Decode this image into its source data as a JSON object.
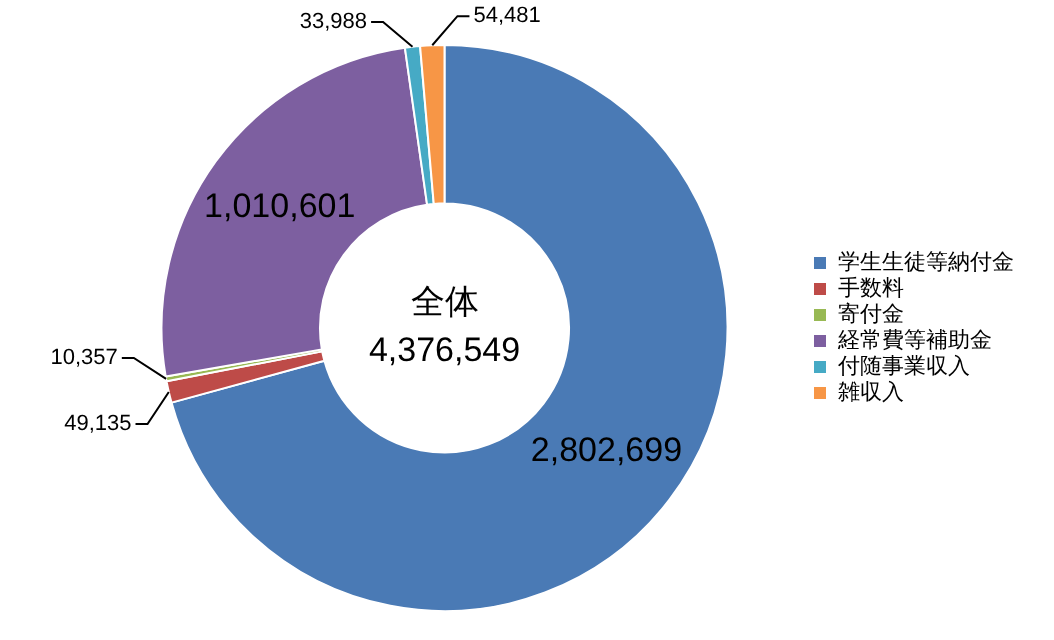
{
  "chart_data": {
    "type": "donut",
    "categories": [
      "学生生徒等納付金",
      "手数料",
      "寄付金",
      "経常費等補助金",
      "付随事業収入",
      "雑収入"
    ],
    "values": [
      2802699,
      49135,
      10357,
      1010601,
      33988,
      54481
    ],
    "colors": [
      "#4a7ab5",
      "#be4b48",
      "#98b954",
      "#7d5fa0",
      "#46aac5",
      "#f79646"
    ],
    "value_labels": [
      "2,802,699",
      "49,135",
      "10,357",
      "1,010,601",
      "33,988",
      "54,481"
    ],
    "legend": "right",
    "annotations": [
      "全体",
      "4,376,549"
    ]
  }
}
